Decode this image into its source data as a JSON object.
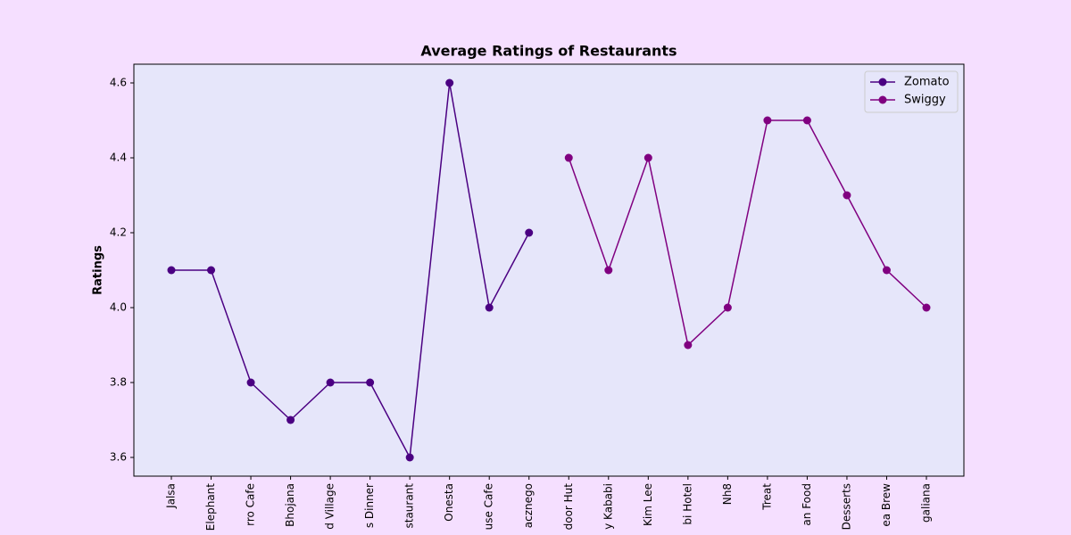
{
  "chart_data": {
    "type": "line",
    "title": "Average Ratings of Restaurants",
    "y_label": "Ratings",
    "categories": [
      "Jalsa",
      "Elephant",
      "rro Cafe",
      "Bhojana",
      "d Village",
      "s Dinner",
      "staurant",
      "Onesta",
      "use Cafe",
      "acznego",
      "door Hut",
      "y Kababi",
      "Kim Lee",
      "bi Hotel",
      "Nh8",
      "Treat",
      "an Food",
      "Desserts",
      "ea Brew",
      "galiana"
    ],
    "series": [
      {
        "name": "Zomato",
        "color": "#4b0082",
        "values": [
          4.1,
          4.1,
          3.8,
          3.7,
          3.8,
          3.8,
          3.6,
          4.6,
          4.0,
          4.2,
          null,
          null,
          null,
          null,
          null,
          null,
          null,
          null,
          null,
          null
        ]
      },
      {
        "name": "Swiggy",
        "color": "#800080",
        "values": [
          null,
          null,
          null,
          null,
          null,
          null,
          null,
          null,
          null,
          null,
          4.4,
          4.1,
          4.4,
          3.9,
          4.0,
          4.5,
          4.5,
          4.3,
          4.1,
          4.0
        ]
      }
    ],
    "ylim": [
      3.55,
      4.65
    ],
    "yticks": [
      3.6,
      3.8,
      {
        "value": 4,
        "label": "4.0"
      },
      4.2,
      4.4,
      4.6
    ],
    "legend": "upper right",
    "grid": false
  }
}
